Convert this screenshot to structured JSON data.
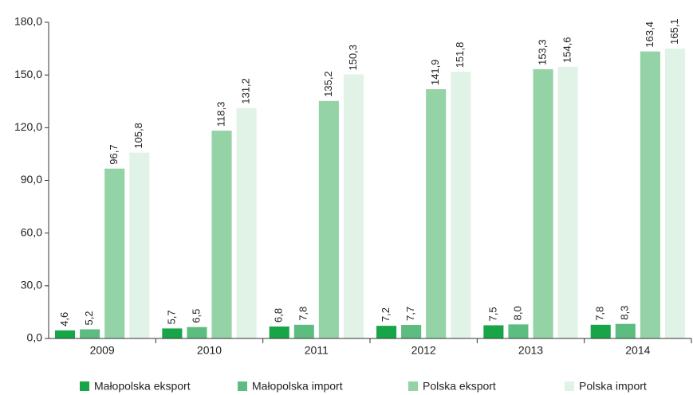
{
  "chart_data": {
    "type": "bar",
    "categories": [
      "2009",
      "2010",
      "2011",
      "2012",
      "2013",
      "2014"
    ],
    "series": [
      {
        "name": "Małopolska eksport",
        "color": "#17a548",
        "values": [
          4.6,
          5.7,
          6.8,
          7.2,
          7.5,
          7.8
        ],
        "value_labels": [
          "4,6",
          "5,7",
          "6,8",
          "7,2",
          "7,5",
          "7,8"
        ]
      },
      {
        "name": "Małopolska import",
        "color": "#5dbd80",
        "values": [
          5.2,
          6.5,
          7.8,
          7.7,
          8.0,
          8.3
        ],
        "value_labels": [
          "5,2",
          "6,5",
          "7,8",
          "7,7",
          "8,0",
          "8,3"
        ]
      },
      {
        "name": "Polska eksport",
        "color": "#93d3a6",
        "values": [
          96.7,
          118.3,
          135.2,
          141.9,
          153.3,
          163.4
        ],
        "value_labels": [
          "96,7",
          "118,3",
          "135,2",
          "141,9",
          "153,3",
          "163,4"
        ]
      },
      {
        "name": "Polska import",
        "color": "#e1f3e6",
        "values": [
          105.8,
          131.2,
          150.3,
          151.8,
          154.6,
          165.1
        ],
        "value_labels": [
          "105,8",
          "131,2",
          "150,3",
          "151,8",
          "154,6",
          "165,1"
        ]
      }
    ],
    "ylim": [
      0,
      180
    ],
    "yticks": [
      {
        "value": 0,
        "label": "0,0"
      },
      {
        "value": 30,
        "label": "30,0"
      },
      {
        "value": 60,
        "label": "60,0"
      },
      {
        "value": 90,
        "label": "90,0"
      },
      {
        "value": 120,
        "label": "120,0"
      },
      {
        "value": 150,
        "label": "150,0"
      },
      {
        "value": 180,
        "label": "180,0"
      }
    ],
    "grid": false,
    "legend": "bottom"
  }
}
